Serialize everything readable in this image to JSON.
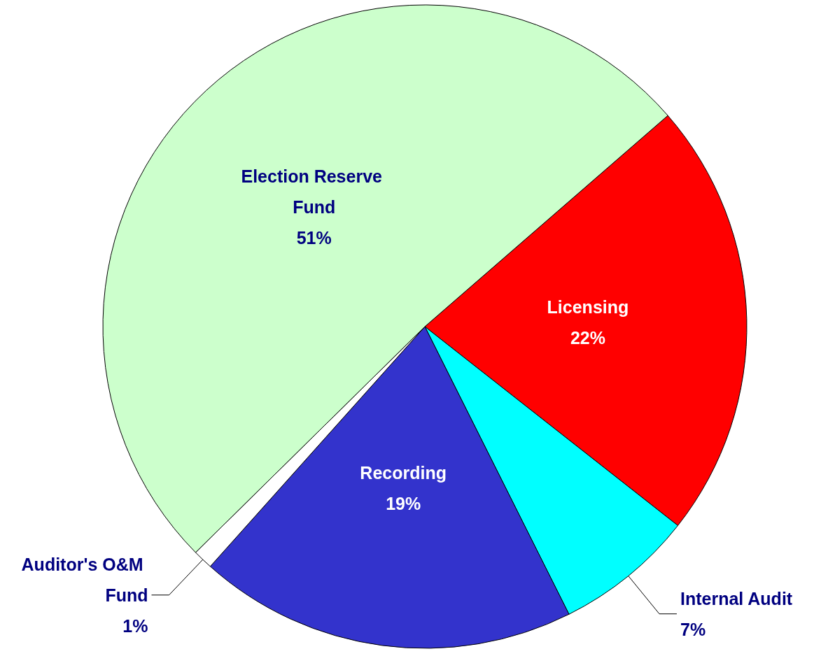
{
  "chart_data": {
    "type": "pie",
    "categories": [
      "Licensing",
      "Internal Audit",
      "Recording",
      "Auditor's O&M Fund",
      "Election Reserve Fund"
    ],
    "values": [
      22,
      7,
      19,
      1,
      51
    ],
    "colors": [
      "#ff0000",
      "#00ffff",
      "#3333cc",
      "#ffffff",
      "#ccffcc"
    ],
    "value_labels": [
      "22%",
      "7%",
      "19%",
      "1%",
      "51%"
    ],
    "legend": false
  }
}
